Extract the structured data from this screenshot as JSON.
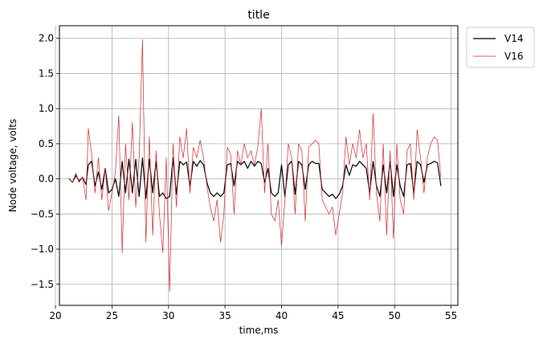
{
  "chart_data": {
    "type": "line",
    "title": "title",
    "xlabel": "time,ms",
    "ylabel": "Node voltage, volts",
    "xlim": [
      20.35,
      55.6
    ],
    "ylim": [
      -1.8,
      2.18
    ],
    "xticks": [
      20,
      25,
      30,
      35,
      40,
      45,
      50,
      55
    ],
    "yticks": [
      -1.5,
      -1.0,
      -0.5,
      0.0,
      0.5,
      1.0,
      1.5,
      2.0
    ],
    "xtick_labels": [
      "20",
      "25",
      "30",
      "35",
      "40",
      "45",
      "50",
      "55"
    ],
    "ytick_labels": [
      "−1.5",
      "−1.0",
      "−0.5",
      "0.0",
      "0.5",
      "1.0",
      "1.5",
      "2.0"
    ],
    "grid": true,
    "legend_position": "outside-top-right",
    "series": [
      {
        "name": "V14",
        "color": "#000000",
        "x": [
          21.2,
          21.5,
          21.8,
          22.1,
          22.4,
          22.7,
          22.9,
          23.2,
          23.5,
          23.8,
          24.1,
          24.4,
          24.7,
          25.0,
          25.3,
          25.6,
          25.9,
          26.2,
          26.5,
          26.8,
          27.1,
          27.4,
          27.7,
          28.0,
          28.3,
          28.6,
          28.9,
          29.2,
          29.5,
          29.8,
          30.1,
          30.4,
          30.7,
          31.0,
          31.3,
          31.6,
          31.9,
          32.2,
          32.5,
          32.8,
          33.1,
          33.4,
          33.7,
          34.0,
          34.3,
          34.6,
          34.9,
          35.2,
          35.5,
          35.8,
          36.1,
          36.4,
          36.7,
          37.0,
          37.3,
          37.6,
          37.9,
          38.2,
          38.5,
          38.8,
          39.1,
          39.4,
          39.7,
          40.0,
          40.3,
          40.6,
          40.9,
          41.2,
          41.5,
          41.8,
          42.1,
          42.4,
          42.7,
          43.0,
          43.3,
          43.6,
          43.9,
          44.2,
          44.5,
          44.8,
          45.1,
          45.4,
          45.7,
          46.0,
          46.3,
          46.6,
          46.9,
          47.2,
          47.5,
          47.8,
          48.1,
          48.4,
          48.7,
          49.0,
          49.3,
          49.6,
          49.9,
          50.2,
          50.5,
          50.8,
          51.1,
          51.4,
          51.7,
          52.0,
          52.3,
          52.6,
          52.9,
          53.2,
          53.5,
          53.8,
          54.1
        ],
        "y": [
          0.0,
          -0.05,
          0.05,
          -0.03,
          0.02,
          -0.08,
          0.2,
          0.25,
          -0.1,
          0.1,
          -0.15,
          0.15,
          -0.2,
          -0.15,
          0.0,
          -0.25,
          0.25,
          -0.2,
          0.28,
          -0.2,
          0.28,
          -0.25,
          0.3,
          -0.28,
          0.28,
          -0.2,
          0.25,
          -0.25,
          -0.2,
          -0.28,
          -0.25,
          0.3,
          -0.22,
          0.25,
          0.2,
          0.24,
          -0.1,
          0.25,
          0.18,
          0.26,
          0.2,
          -0.05,
          -0.2,
          -0.25,
          -0.2,
          -0.25,
          -0.2,
          0.2,
          0.22,
          -0.1,
          0.25,
          0.2,
          0.25,
          0.15,
          0.25,
          0.18,
          0.25,
          0.22,
          -0.05,
          0.15,
          -0.2,
          -0.25,
          -0.2,
          0.2,
          -0.25,
          0.2,
          0.25,
          -0.22,
          0.25,
          0.2,
          -0.15,
          0.2,
          0.25,
          0.22,
          0.22,
          -0.15,
          -0.2,
          -0.25,
          -0.22,
          -0.28,
          -0.22,
          -0.1,
          0.2,
          0.05,
          0.2,
          0.18,
          0.25,
          0.2,
          0.15,
          -0.2,
          0.25,
          -0.1,
          -0.25,
          0.2,
          -0.2,
          0.25,
          -0.25,
          0.2,
          -0.1,
          -0.25,
          0.2,
          0.22,
          -0.2,
          0.25,
          0.2,
          -0.05,
          0.2,
          0.22,
          0.25,
          0.23,
          -0.1
        ]
      },
      {
        "name": "V16",
        "color": "#d62728",
        "x": [
          21.2,
          21.5,
          21.8,
          22.1,
          22.4,
          22.7,
          22.9,
          23.2,
          23.5,
          23.8,
          24.1,
          24.4,
          24.7,
          25.0,
          25.3,
          25.6,
          25.9,
          26.2,
          26.5,
          26.8,
          27.1,
          27.4,
          27.7,
          28.0,
          28.3,
          28.6,
          28.9,
          29.2,
          29.5,
          29.8,
          30.1,
          30.4,
          30.7,
          31.0,
          31.3,
          31.6,
          31.9,
          32.2,
          32.5,
          32.8,
          33.1,
          33.4,
          33.7,
          34.0,
          34.3,
          34.6,
          34.9,
          35.2,
          35.5,
          35.8,
          36.1,
          36.4,
          36.7,
          37.0,
          37.3,
          37.6,
          37.9,
          38.2,
          38.5,
          38.8,
          39.1,
          39.4,
          39.7,
          40.0,
          40.3,
          40.6,
          40.9,
          41.2,
          41.5,
          41.8,
          42.1,
          42.4,
          42.7,
          43.0,
          43.3,
          43.6,
          43.9,
          44.2,
          44.5,
          44.8,
          45.1,
          45.4,
          45.7,
          46.0,
          46.3,
          46.6,
          46.9,
          47.2,
          47.5,
          47.8,
          48.1,
          48.4,
          48.7,
          49.0,
          49.3,
          49.6,
          49.9,
          50.2,
          50.5,
          50.8,
          51.1,
          51.4,
          51.7,
          52.0,
          52.3,
          52.6,
          52.9,
          53.2,
          53.5,
          53.8,
          54.1
        ],
        "y": [
          0.0,
          -0.05,
          0.08,
          -0.05,
          0.03,
          -0.3,
          0.72,
          0.35,
          -0.2,
          0.3,
          -0.3,
          0.15,
          -0.45,
          -0.2,
          0.1,
          0.9,
          -1.05,
          0.5,
          -0.3,
          0.8,
          -0.4,
          0.3,
          1.98,
          -0.9,
          0.6,
          -0.8,
          0.4,
          -0.5,
          -1.05,
          0.3,
          -1.6,
          0.5,
          -0.4,
          0.6,
          0.3,
          0.72,
          -0.2,
          0.45,
          0.3,
          0.55,
          0.3,
          -0.1,
          -0.4,
          -0.6,
          -0.3,
          -0.9,
          -0.5,
          0.45,
          0.35,
          -0.5,
          0.4,
          0.2,
          0.5,
          0.3,
          0.4,
          0.2,
          0.45,
          1.0,
          -0.2,
          0.5,
          -0.5,
          -0.6,
          -0.3,
          -0.95,
          -0.3,
          0.5,
          0.3,
          -0.5,
          0.5,
          0.4,
          -0.6,
          0.45,
          0.5,
          0.55,
          0.5,
          -0.3,
          -0.4,
          -0.5,
          -0.4,
          -0.8,
          -0.5,
          -0.2,
          0.6,
          0.2,
          0.5,
          0.3,
          0.7,
          0.3,
          0.5,
          -0.3,
          0.93,
          -0.2,
          -0.6,
          0.5,
          -0.8,
          0.4,
          -0.85,
          0.5,
          -0.3,
          -0.5,
          0.4,
          0.5,
          -0.3,
          0.7,
          0.3,
          -0.2,
          0.3,
          0.5,
          0.6,
          0.55,
          0.02
        ]
      }
    ]
  }
}
